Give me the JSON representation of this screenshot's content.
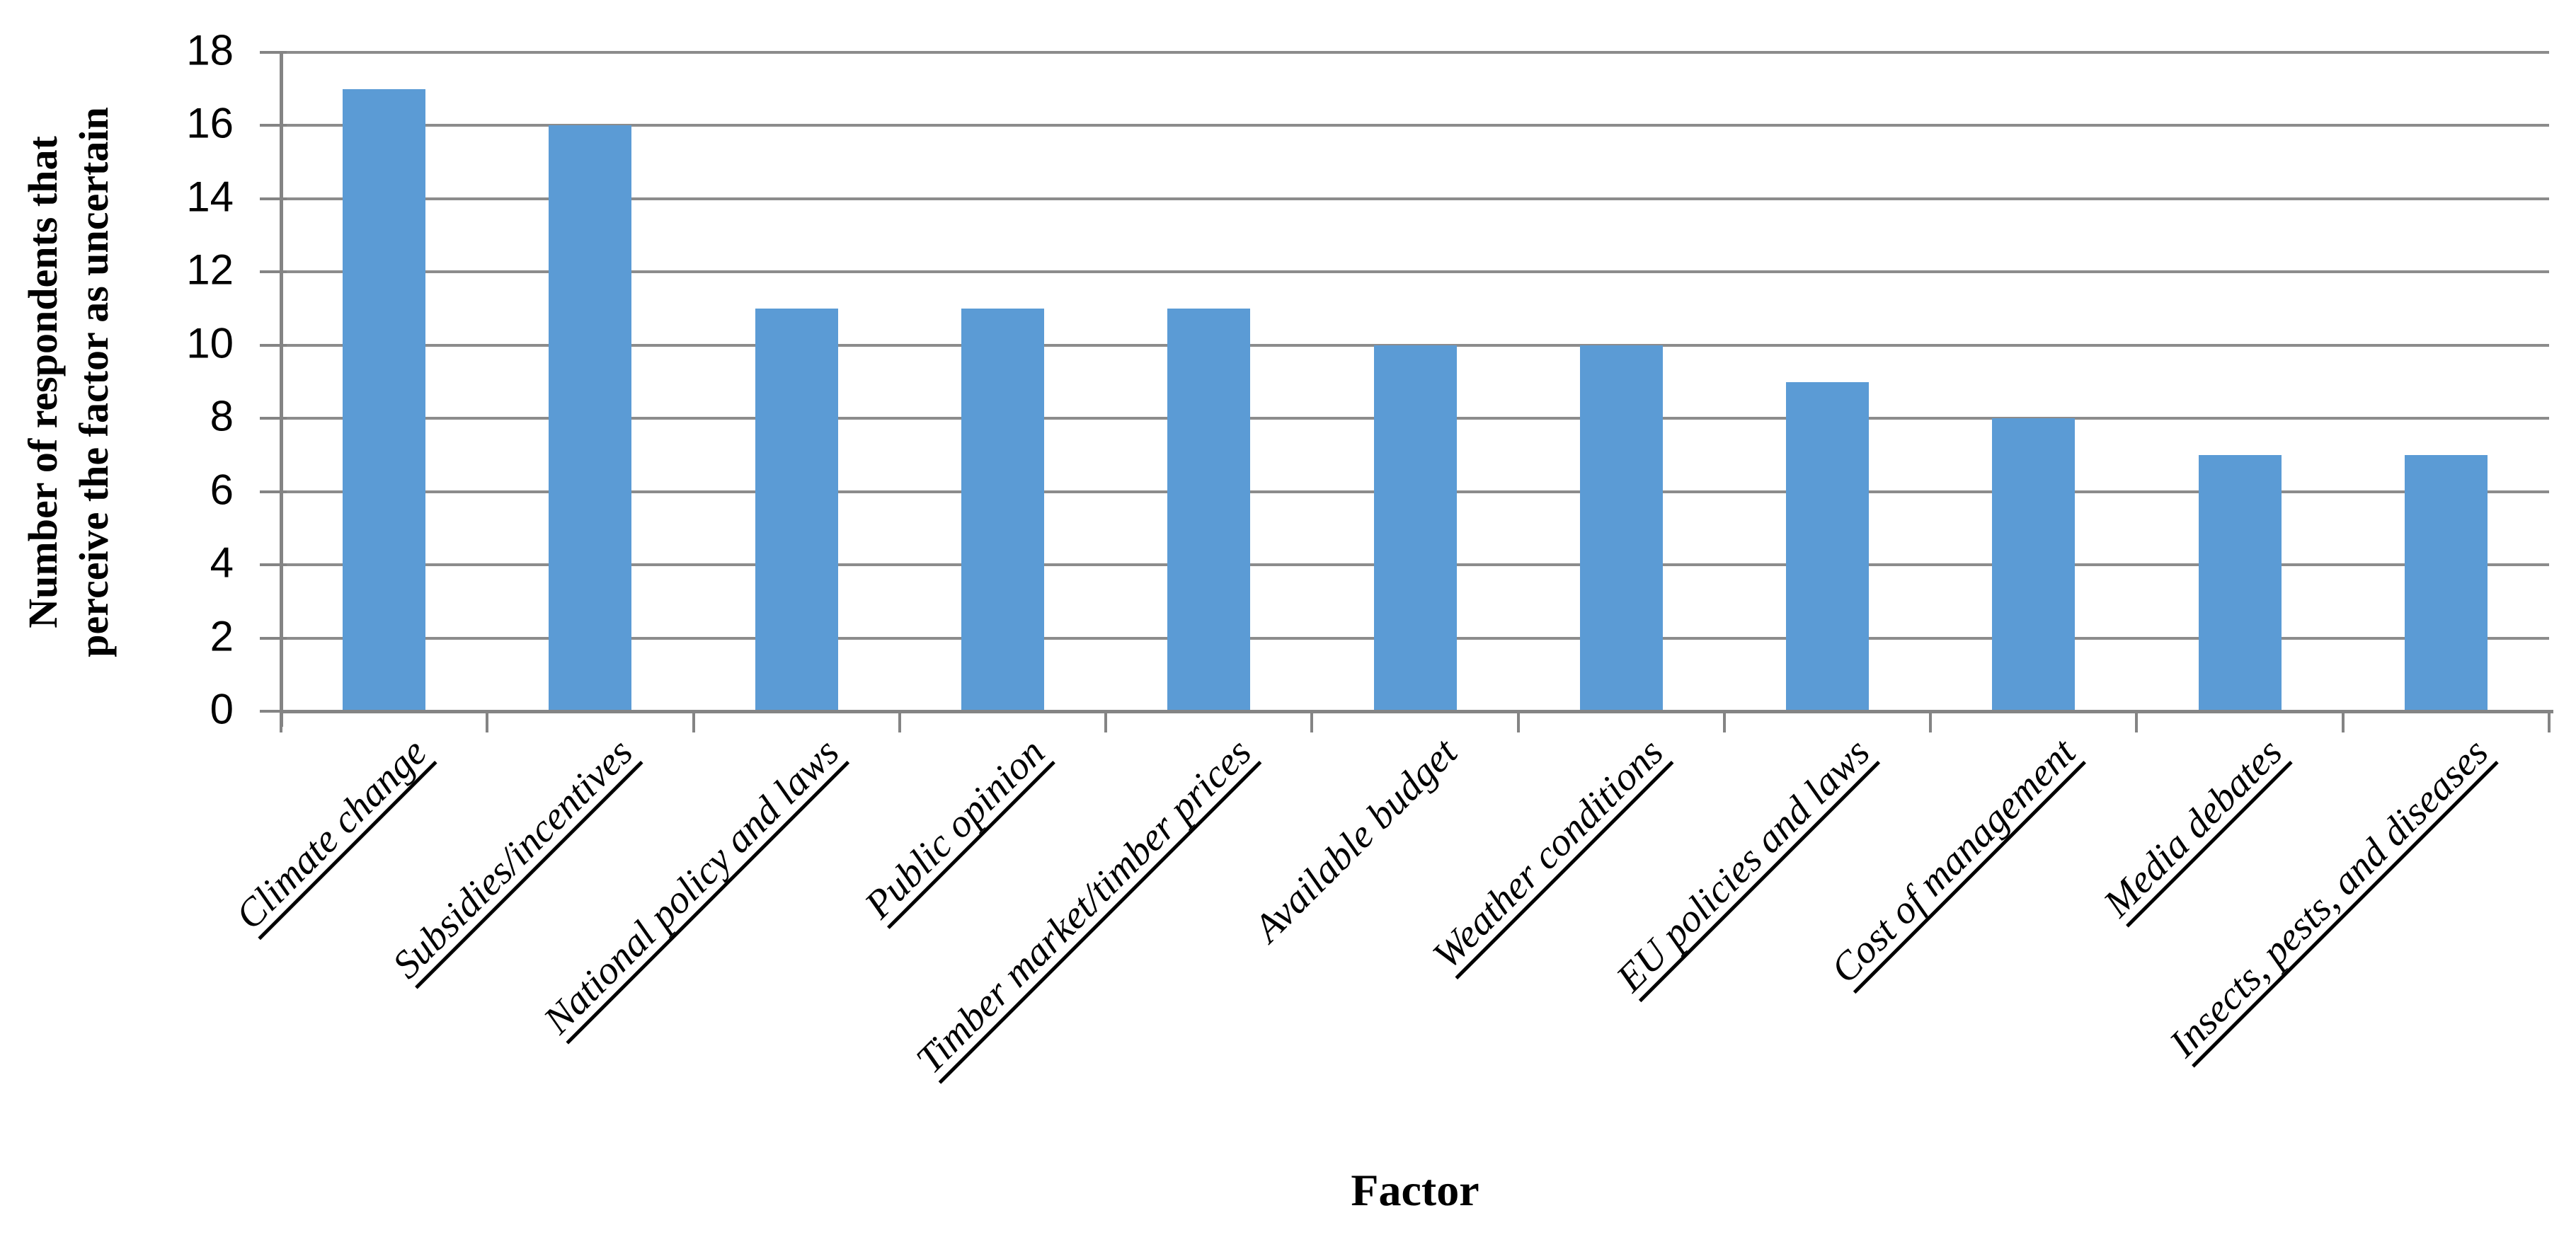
{
  "chart_data": {
    "type": "bar",
    "title": "",
    "xlabel": "Factor",
    "ylabel": "Number of respondents that perceive the factor as uncertain",
    "ylabel_lines": [
      "Number of respondents that",
      "perceive the factor as uncertain"
    ],
    "categories": [
      "Climate change",
      "Subsidies/incentives",
      "National policy and laws",
      "Public opinion",
      "Timber market/timber prices",
      "Available budget",
      "Weather conditions",
      "EU policies and laws",
      "Cost of management",
      "Media debates",
      "Insects, pests, and diseases"
    ],
    "values": [
      17,
      16,
      11,
      11,
      11,
      10,
      10,
      9,
      8,
      7,
      7
    ],
    "underlined_categories": [
      true,
      true,
      true,
      true,
      true,
      false,
      true,
      true,
      true,
      true,
      true
    ],
    "ylim": [
      0,
      18
    ],
    "ytick_step": 2,
    "ytick_labels": [
      "0",
      "2",
      "4",
      "6",
      "8",
      "10",
      "12",
      "14",
      "16",
      "18"
    ],
    "grid": "horizontal",
    "legend": "none",
    "bar_color": "#5B9BD5",
    "grid_color": "#8C8C8C",
    "axis_color": "#848484",
    "text_color": "#000000",
    "background_color": "#FFFFFF"
  }
}
